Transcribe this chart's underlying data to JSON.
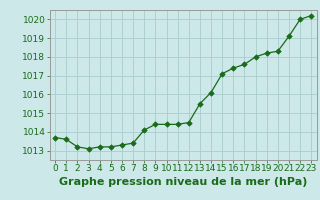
{
  "x": [
    0,
    1,
    2,
    3,
    4,
    5,
    6,
    7,
    8,
    9,
    10,
    11,
    12,
    13,
    14,
    15,
    16,
    17,
    18,
    19,
    20,
    21,
    22,
    23
  ],
  "y": [
    1013.7,
    1013.6,
    1013.2,
    1013.1,
    1013.2,
    1013.2,
    1013.3,
    1013.4,
    1014.1,
    1014.4,
    1014.4,
    1014.4,
    1014.5,
    1015.5,
    1016.1,
    1017.1,
    1017.4,
    1017.6,
    1018.0,
    1018.2,
    1018.3,
    1019.1,
    1020.0,
    1020.2
  ],
  "ylim": [
    1012.5,
    1020.5
  ],
  "yticks": [
    1013,
    1014,
    1015,
    1016,
    1017,
    1018,
    1019,
    1020
  ],
  "xlim": [
    -0.5,
    23.5
  ],
  "xticks": [
    0,
    1,
    2,
    3,
    4,
    5,
    6,
    7,
    8,
    9,
    10,
    11,
    12,
    13,
    14,
    15,
    16,
    17,
    18,
    19,
    20,
    21,
    22,
    23
  ],
  "line_color": "#1a6b1a",
  "marker_color": "#1a6b1a",
  "bg_color": "#cce8e8",
  "grid_color": "#aacccc",
  "xlabel": "Graphe pression niveau de la mer (hPa)",
  "xlabel_color": "#1a6b1a",
  "tick_color": "#1a6b1a",
  "spine_color": "#999999",
  "tick_fontsize": 6.5,
  "xlabel_fontsize": 8.0
}
